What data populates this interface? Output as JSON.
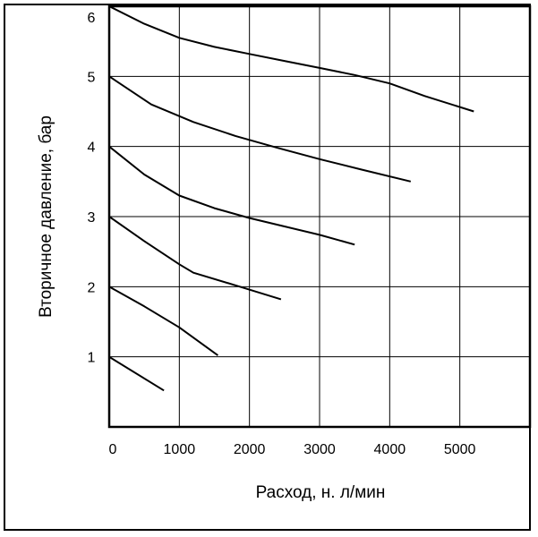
{
  "chart_data": {
    "type": "line",
    "title": "",
    "xlabel": "Расход, н. л/мин",
    "ylabel": "Вторичное давление, бар",
    "xlim": [
      0,
      6000
    ],
    "ylim": [
      0,
      6
    ],
    "grid": true,
    "legend": "none",
    "x_ticks": [
      "0",
      "1000",
      "2000",
      "3000",
      "4000",
      "5000"
    ],
    "y_ticks": [
      "1",
      "2",
      "3",
      "4",
      "5",
      "6"
    ],
    "line_color": "#000000",
    "series": [
      {
        "x": [
          0,
          500,
          1000,
          1500,
          2000,
          2500,
          3000,
          3500,
          4000,
          4500,
          5200
        ],
        "y": [
          6.0,
          5.75,
          5.55,
          5.42,
          5.32,
          5.22,
          5.12,
          5.02,
          4.9,
          4.72,
          4.5
        ]
      },
      {
        "x": [
          0,
          600,
          1200,
          1800,
          2400,
          3000,
          3600,
          4300
        ],
        "y": [
          5.0,
          4.6,
          4.35,
          4.15,
          3.98,
          3.82,
          3.67,
          3.5
        ]
      },
      {
        "x": [
          0,
          500,
          1000,
          1500,
          2000,
          2500,
          3000,
          3500
        ],
        "y": [
          4.0,
          3.6,
          3.3,
          3.12,
          2.98,
          2.86,
          2.74,
          2.6
        ]
      },
      {
        "x": [
          0,
          500,
          1000,
          1200,
          1800,
          2450
        ],
        "y": [
          3.0,
          2.65,
          2.32,
          2.2,
          2.02,
          1.82
        ]
      },
      {
        "x": [
          0,
          500,
          1000,
          1550
        ],
        "y": [
          2.0,
          1.72,
          1.42,
          1.02
        ]
      },
      {
        "x": [
          0,
          780
        ],
        "y": [
          1.0,
          0.52
        ]
      }
    ]
  }
}
